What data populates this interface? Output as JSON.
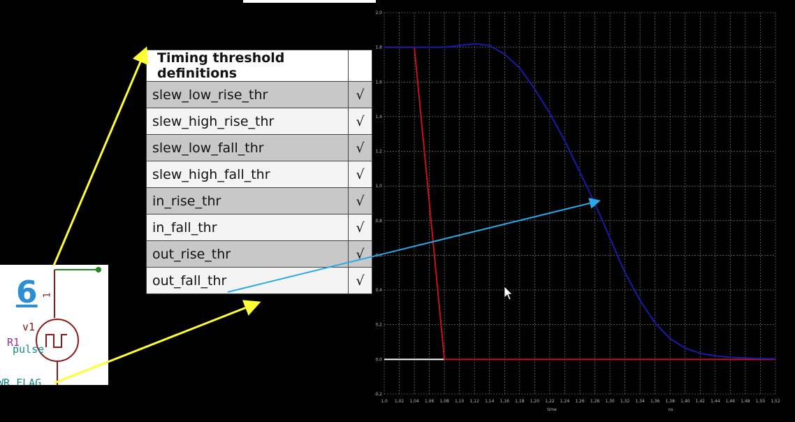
{
  "table": {
    "header": "Timing threshold definitions",
    "rows": [
      {
        "name": "slew_low_rise_thr",
        "check": "√"
      },
      {
        "name": "slew_high_rise_thr",
        "check": "√"
      },
      {
        "name": "slew_low_fall_thr",
        "check": "√"
      },
      {
        "name": "slew_high_fall_thr",
        "check": "√"
      },
      {
        "name": "in_rise_thr",
        "check": "√"
      },
      {
        "name": "in_fall_thr",
        "check": "√"
      },
      {
        "name": "out_rise_thr",
        "check": "√"
      },
      {
        "name": "out_fall_thr",
        "check": "√"
      }
    ]
  },
  "schematic": {
    "number": "6",
    "pin": "1",
    "source_name": "v1",
    "resistor": "R1",
    "source_type": "pulse",
    "flag": "WR_FLAG"
  },
  "colors": {
    "input_wave": "#cc1111",
    "output_wave": "#1a1aaa",
    "pointer_arrow": "#2aa8e8",
    "callout_arrow": "#ffff33",
    "wire": "#1a8a1a"
  },
  "chart_data": {
    "type": "line",
    "xlim": [
      1.0,
      1.52
    ],
    "ylim": [
      -0.2,
      2.0
    ],
    "xticks": [
      "1,0",
      "1,02",
      "1,04",
      "1,06",
      "1,08",
      "1,10",
      "1,12",
      "1,14",
      "1,16",
      "1,18",
      "1,20",
      "1,22",
      "1,24",
      "1,26",
      "1,28",
      "1,30",
      "1,32",
      "1,34",
      "1,36",
      "1,38",
      "1,40",
      "1,42",
      "1,44",
      "1,46",
      "1,48",
      "1,50",
      "1,52"
    ],
    "yticks": [
      "-0,2",
      "0,0",
      "0,2",
      "0,4",
      "0,6",
      "0,8",
      "1,0",
      "1,2",
      "1,4",
      "1,6",
      "1,8",
      "2,0"
    ],
    "xlabel": "time",
    "xunit": "ns",
    "grid": true,
    "series": [
      {
        "color": "#cc1111",
        "x": [
          1.0,
          1.04,
          1.08,
          1.52
        ],
        "y": [
          1.8,
          1.8,
          0.0,
          0.0
        ]
      },
      {
        "color": "#1a1aaa",
        "x": [
          1.0,
          1.04,
          1.08,
          1.1,
          1.12,
          1.14,
          1.16,
          1.18,
          1.2,
          1.22,
          1.24,
          1.26,
          1.28,
          1.3,
          1.32,
          1.34,
          1.36,
          1.38,
          1.4,
          1.42,
          1.44,
          1.46,
          1.48,
          1.5,
          1.52
        ],
        "y": [
          1.8,
          1.8,
          1.8,
          1.81,
          1.82,
          1.81,
          1.76,
          1.68,
          1.56,
          1.42,
          1.26,
          1.08,
          0.9,
          0.7,
          0.5,
          0.34,
          0.21,
          0.12,
          0.065,
          0.035,
          0.02,
          0.012,
          0.008,
          0.005,
          0.003
        ]
      }
    ]
  }
}
